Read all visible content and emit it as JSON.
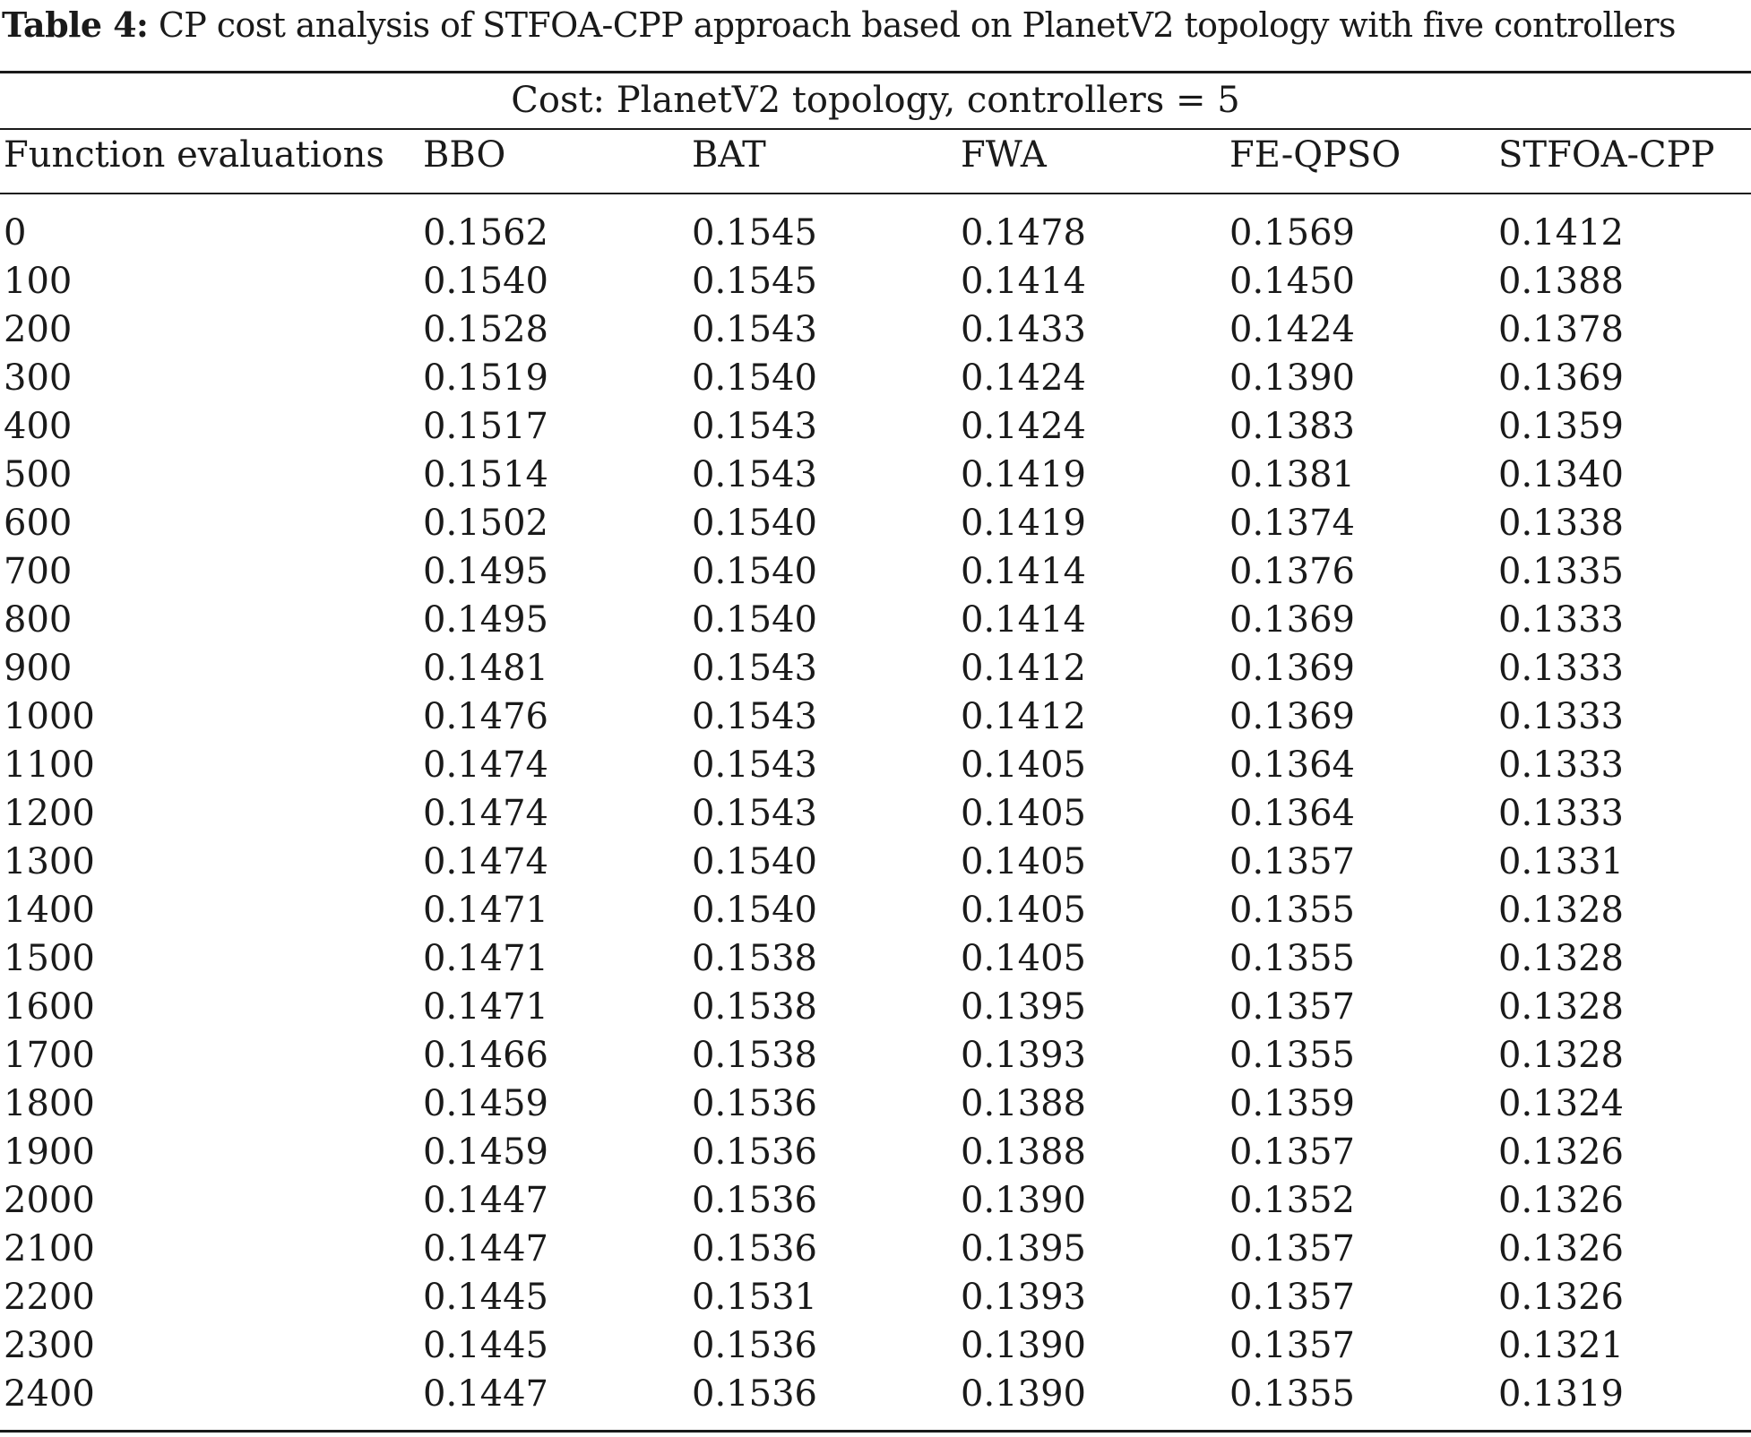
{
  "caption": {
    "label": "Table 4:",
    "text": " CP cost analysis of STFOA-CPP approach based on PlanetV2 topology with five controllers"
  },
  "group_title": "Cost: PlanetV2 topology, controllers = 5",
  "headers": [
    "Function evaluations",
    "BBO",
    "BAT",
    "FWA",
    "FE-QPSO",
    "STFOA-CPP"
  ],
  "rows": [
    [
      "0",
      "0.1562",
      "0.1545",
      "0.1478",
      "0.1569",
      "0.1412"
    ],
    [
      "100",
      "0.1540",
      "0.1545",
      "0.1414",
      "0.1450",
      "0.1388"
    ],
    [
      "200",
      "0.1528",
      "0.1543",
      "0.1433",
      "0.1424",
      "0.1378"
    ],
    [
      "300",
      "0.1519",
      "0.1540",
      "0.1424",
      "0.1390",
      "0.1369"
    ],
    [
      "400",
      "0.1517",
      "0.1543",
      "0.1424",
      "0.1383",
      "0.1359"
    ],
    [
      "500",
      "0.1514",
      "0.1543",
      "0.1419",
      "0.1381",
      "0.1340"
    ],
    [
      "600",
      "0.1502",
      "0.1540",
      "0.1419",
      "0.1374",
      "0.1338"
    ],
    [
      "700",
      "0.1495",
      "0.1540",
      "0.1414",
      "0.1376",
      "0.1335"
    ],
    [
      "800",
      "0.1495",
      "0.1540",
      "0.1414",
      "0.1369",
      "0.1333"
    ],
    [
      "900",
      "0.1481",
      "0.1543",
      "0.1412",
      "0.1369",
      "0.1333"
    ],
    [
      "1000",
      "0.1476",
      "0.1543",
      "0.1412",
      "0.1369",
      "0.1333"
    ],
    [
      "1100",
      "0.1474",
      "0.1543",
      "0.1405",
      "0.1364",
      "0.1333"
    ],
    [
      "1200",
      "0.1474",
      "0.1543",
      "0.1405",
      "0.1364",
      "0.1333"
    ],
    [
      "1300",
      "0.1474",
      "0.1540",
      "0.1405",
      "0.1357",
      "0.1331"
    ],
    [
      "1400",
      "0.1471",
      "0.1540",
      "0.1405",
      "0.1355",
      "0.1328"
    ],
    [
      "1500",
      "0.1471",
      "0.1538",
      "0.1405",
      "0.1355",
      "0.1328"
    ],
    [
      "1600",
      "0.1471",
      "0.1538",
      "0.1395",
      "0.1357",
      "0.1328"
    ],
    [
      "1700",
      "0.1466",
      "0.1538",
      "0.1393",
      "0.1355",
      "0.1328"
    ],
    [
      "1800",
      "0.1459",
      "0.1536",
      "0.1388",
      "0.1359",
      "0.1324"
    ],
    [
      "1900",
      "0.1459",
      "0.1536",
      "0.1388",
      "0.1357",
      "0.1326"
    ],
    [
      "2000",
      "0.1447",
      "0.1536",
      "0.1390",
      "0.1352",
      "0.1326"
    ],
    [
      "2100",
      "0.1447",
      "0.1536",
      "0.1395",
      "0.1357",
      "0.1326"
    ],
    [
      "2200",
      "0.1445",
      "0.1531",
      "0.1393",
      "0.1357",
      "0.1326"
    ],
    [
      "2300",
      "0.1445",
      "0.1536",
      "0.1390",
      "0.1357",
      "0.1321"
    ],
    [
      "2400",
      "0.1447",
      "0.1536",
      "0.1390",
      "0.1355",
      "0.1319"
    ]
  ]
}
